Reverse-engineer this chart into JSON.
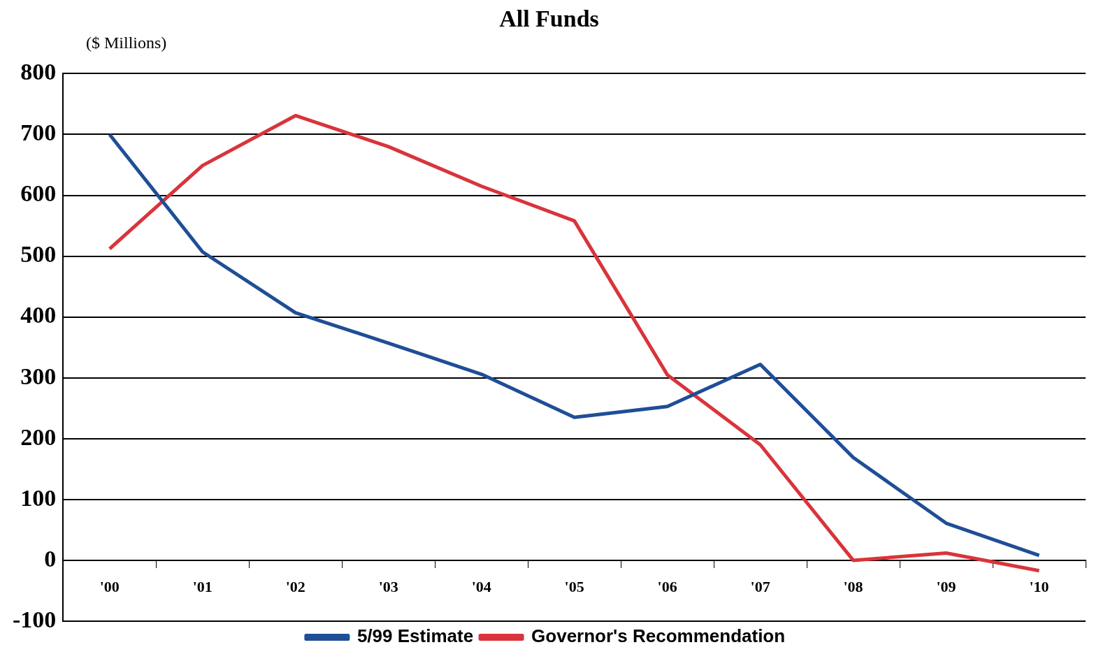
{
  "chart_data": {
    "type": "line",
    "title": "All Funds",
    "ylabel": "($ Millions)",
    "categories": [
      "'00",
      "'01",
      "'02",
      "'03",
      "'04",
      "'05",
      "'06",
      "'07",
      "'08",
      "'09",
      "'10"
    ],
    "series": [
      {
        "name": "5/99 Estimate",
        "color": "#1f4e96",
        "values": [
          700,
          507,
          407,
          357,
          306,
          235,
          253,
          322,
          169,
          61,
          8
        ]
      },
      {
        "name": "Governor's Recommendation",
        "color": "#d9343b",
        "values": [
          512,
          649,
          731,
          680,
          615,
          558,
          305,
          190,
          0,
          12,
          -17
        ]
      }
    ],
    "ylim": [
      -100,
      800
    ],
    "yticks": [
      -100,
      0,
      100,
      200,
      300,
      400,
      500,
      600,
      700,
      800
    ],
    "grid": "y",
    "legend": "bottom",
    "marker": "none",
    "line_style": "solid"
  }
}
